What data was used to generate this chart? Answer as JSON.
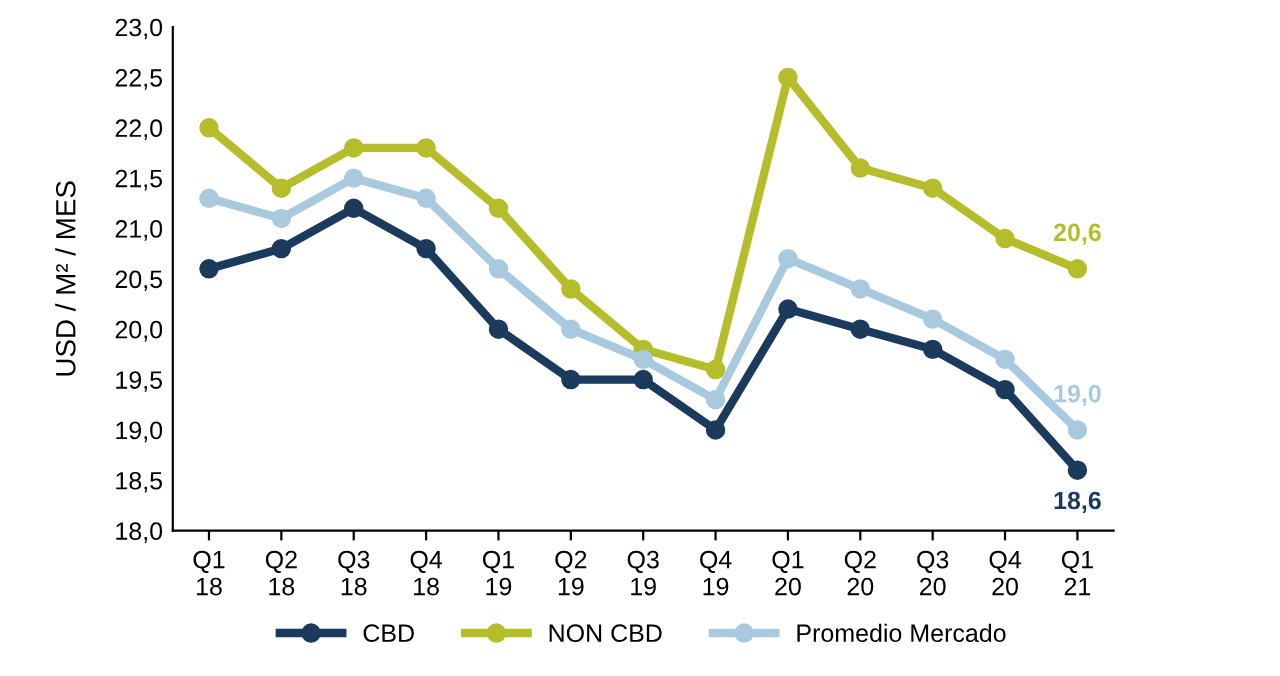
{
  "chart_data": {
    "type": "line",
    "ylabel": "USD / M² / MES",
    "categories": [
      "Q1\n18",
      "Q2\n18",
      "Q3\n18",
      "Q4\n18",
      "Q1\n19",
      "Q2\n19",
      "Q3\n19",
      "Q4\n19",
      "Q1\n20",
      "Q2\n20",
      "Q3\n20",
      "Q4\n20",
      "Q1\n21"
    ],
    "series": [
      {
        "name": "CBD",
        "color": "#1b3a5c",
        "values": [
          20.6,
          20.8,
          21.2,
          20.8,
          20.0,
          19.5,
          19.5,
          19.0,
          20.2,
          20.0,
          19.8,
          19.4,
          18.6
        ],
        "value_labels": [
          null,
          null,
          null,
          null,
          null,
          null,
          null,
          null,
          null,
          null,
          null,
          null,
          "18,6"
        ]
      },
      {
        "name": "NON CBD",
        "color": "#b5bd2a",
        "values": [
          22.0,
          21.4,
          21.8,
          21.8,
          21.2,
          20.4,
          19.8,
          19.6,
          22.5,
          21.6,
          21.4,
          20.9,
          20.6
        ],
        "value_labels": [
          null,
          null,
          null,
          null,
          null,
          null,
          null,
          null,
          null,
          null,
          null,
          null,
          "20,6"
        ]
      },
      {
        "name": "Promedio Mercado",
        "color": "#a9c9de",
        "values": [
          21.3,
          21.1,
          21.5,
          21.3,
          20.6,
          20.0,
          19.7,
          19.3,
          20.7,
          20.4,
          20.1,
          19.7,
          19.0
        ],
        "value_labels": [
          null,
          null,
          null,
          null,
          null,
          null,
          null,
          null,
          null,
          null,
          null,
          null,
          "19,0"
        ]
      }
    ],
    "ylim": [
      18.0,
      23.0
    ],
    "yticks": [
      {
        "value": 18.0,
        "label": "18,0"
      },
      {
        "value": 18.5,
        "label": "18,5"
      },
      {
        "value": 19.0,
        "label": "19,0"
      },
      {
        "value": 19.5,
        "label": "19,5"
      },
      {
        "value": 20.0,
        "label": "20,0"
      },
      {
        "value": 20.5,
        "label": "20,5"
      },
      {
        "value": 21.0,
        "label": "21,0"
      },
      {
        "value": 21.5,
        "label": "21,5"
      },
      {
        "value": 22.0,
        "label": "22,0"
      },
      {
        "value": 22.5,
        "label": "22,5"
      },
      {
        "value": 23.0,
        "label": "23,0"
      }
    ],
    "grid": false,
    "legend": "bottom",
    "marker": "circle",
    "line_style": "solid"
  }
}
